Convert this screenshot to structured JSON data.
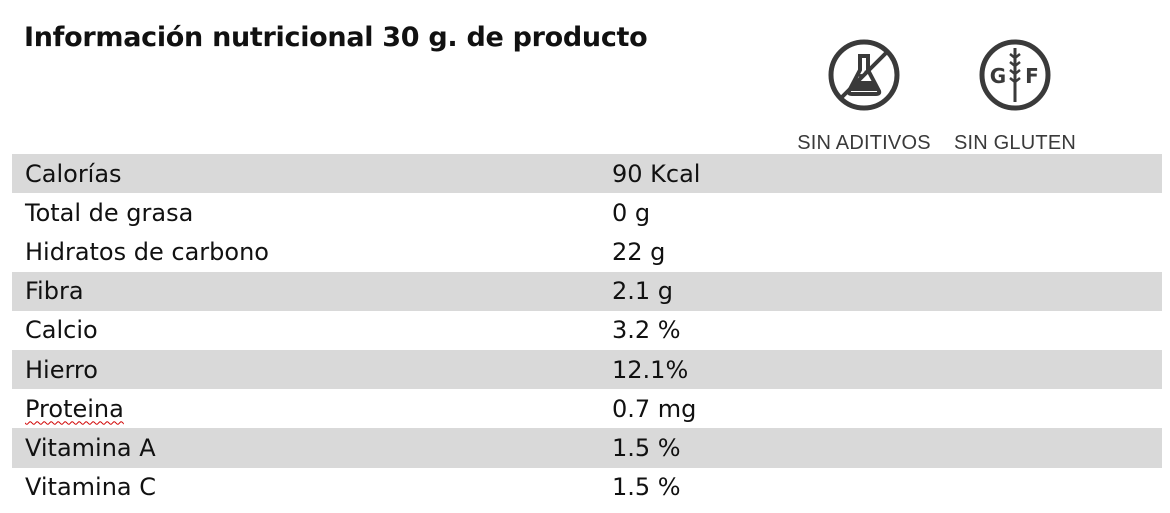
{
  "title": "Información nutricional 30 g. de producto",
  "badges": [
    {
      "label": "SIN ADITIVOS",
      "icon": "no-additives-flask-icon"
    },
    {
      "label": "SIN GLUTEN",
      "icon": "gluten-free-wheat-icon",
      "icon_letters": [
        "G",
        "F"
      ]
    }
  ],
  "colors": {
    "row_shade": "#d9d9d9",
    "icon_stroke": "#3a3a3a",
    "spellcheck_underline": "#d00000"
  },
  "nutrition": [
    {
      "name": "Calorías",
      "value": "90 Kcal",
      "shaded": true
    },
    {
      "name": "Total de grasa",
      "value": "0 g",
      "shaded": false
    },
    {
      "name": "Hidratos de carbono",
      "value": "22 g",
      "shaded": false
    },
    {
      "name": "Fibra",
      "value": "2.1 g",
      "shaded": true
    },
    {
      "name": "Calcio",
      "value": "3.2 %",
      "shaded": false
    },
    {
      "name": "Hierro",
      "value": "12.1%",
      "shaded": true
    },
    {
      "name": "Proteina",
      "value": "0.7 mg",
      "shaded": false,
      "spellcheck_underline": true
    },
    {
      "name": "Vitamina A",
      "value": "1.5 %",
      "shaded": true
    },
    {
      "name": "Vitamina C",
      "value": "1.5 %",
      "shaded": false
    }
  ]
}
